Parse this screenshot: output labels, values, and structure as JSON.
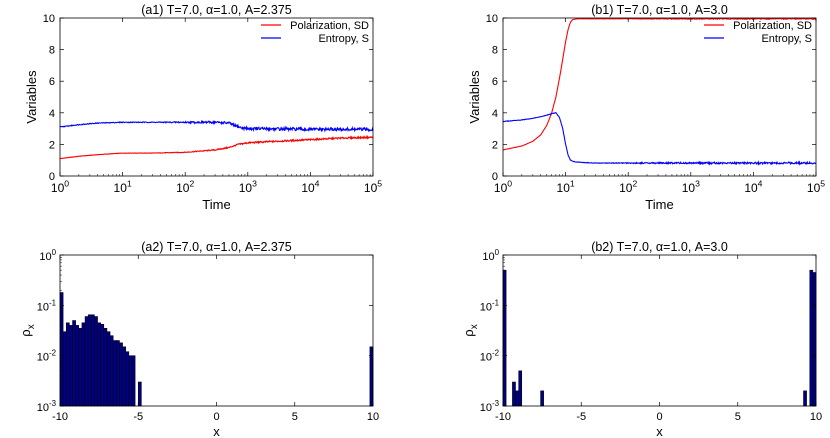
{
  "colors": {
    "polarization": "#ff0000",
    "entropy": "#0000ff",
    "bar_fill": "#000080",
    "bar_edge": "#000000"
  },
  "chart_data": [
    {
      "id": "a1",
      "type": "line",
      "title": "(a1) T=7.0,    α=1.0, A=2.375",
      "xlabel": "Time",
      "ylabel": "Variables",
      "xscale": "log",
      "xlim": [
        1,
        100000
      ],
      "ylim": [
        0,
        10
      ],
      "xticks": [
        1,
        10,
        100,
        1000,
        10000,
        100000
      ],
      "xtick_labels": [
        {
          "base": "10",
          "exp": "0"
        },
        {
          "base": "10",
          "exp": "1"
        },
        {
          "base": "10",
          "exp": "2"
        },
        {
          "base": "10",
          "exp": "3"
        },
        {
          "base": "10",
          "exp": "4"
        },
        {
          "base": "10",
          "exp": "5"
        }
      ],
      "yticks": [
        0,
        2,
        4,
        6,
        8,
        10
      ],
      "ytick_labels": [
        "0",
        "2",
        "4",
        "6",
        "8",
        "10"
      ],
      "legend": {
        "position": "top-right"
      },
      "series": [
        {
          "name": "Polarization, SD",
          "color": "#ff0000",
          "noise": 0.05,
          "x": [
            1,
            2,
            4,
            10,
            30,
            100,
            300,
            500,
            700,
            1000,
            3000,
            10000,
            30000,
            100000
          ],
          "y": [
            1.1,
            1.25,
            1.35,
            1.45,
            1.45,
            1.5,
            1.65,
            1.8,
            2.0,
            2.1,
            2.2,
            2.3,
            2.4,
            2.45
          ]
        },
        {
          "name": "Entropy, S",
          "color": "#0000ff",
          "noise": 0.1,
          "x": [
            1,
            2,
            4,
            10,
            100,
            300,
            500,
            600,
            800,
            1000,
            10000,
            100000
          ],
          "y": [
            3.1,
            3.25,
            3.35,
            3.4,
            3.4,
            3.4,
            3.35,
            3.2,
            3.05,
            3.0,
            2.95,
            2.95
          ]
        }
      ]
    },
    {
      "id": "b1",
      "type": "line",
      "title": "(b1) T=7.0,    α=1.0, A=3.0",
      "xlabel": "Time",
      "ylabel": "Variables",
      "xscale": "log",
      "xlim": [
        1,
        100000
      ],
      "ylim": [
        0,
        10
      ],
      "xticks": [
        1,
        10,
        100,
        1000,
        10000,
        100000
      ],
      "xtick_labels": [
        {
          "base": "10",
          "exp": "0"
        },
        {
          "base": "10",
          "exp": "1"
        },
        {
          "base": "10",
          "exp": "2"
        },
        {
          "base": "10",
          "exp": "3"
        },
        {
          "base": "10",
          "exp": "4"
        },
        {
          "base": "10",
          "exp": "5"
        }
      ],
      "yticks": [
        0,
        2,
        4,
        6,
        8,
        10
      ],
      "ytick_labels": [
        "0",
        "2",
        "4",
        "6",
        "8",
        "10"
      ],
      "legend": {
        "position": "top-right"
      },
      "series": [
        {
          "name": "Polarization, SD",
          "color": "#ff0000",
          "noise": 0.03,
          "x": [
            1,
            2,
            3,
            4,
            5,
            6,
            7,
            8,
            9,
            10,
            11,
            12,
            13,
            15,
            20,
            100000
          ],
          "y": [
            1.65,
            1.9,
            2.2,
            2.6,
            3.2,
            4.0,
            5.0,
            6.2,
            7.4,
            8.5,
            9.3,
            9.75,
            9.9,
            9.95,
            9.95,
            9.95
          ]
        },
        {
          "name": "Entropy, S",
          "color": "#0000ff",
          "noise": 0.06,
          "x": [
            1,
            2,
            3,
            4,
            5,
            6,
            7,
            8,
            9,
            10,
            11,
            12,
            14,
            20,
            30,
            100000
          ],
          "y": [
            3.45,
            3.55,
            3.65,
            3.75,
            3.85,
            3.95,
            4.0,
            3.7,
            3.0,
            2.0,
            1.3,
            1.0,
            0.9,
            0.85,
            0.82,
            0.82
          ]
        }
      ]
    },
    {
      "id": "a2",
      "type": "bar",
      "title": "(a2) T=7.0,    α=1.0, A=2.375",
      "xlabel": "x",
      "ylabel": {
        "base": "ρ",
        "sub": "x"
      },
      "yscale": "log",
      "xlim": [
        -10,
        10
      ],
      "ylim": [
        0.001,
        1
      ],
      "xticks": [
        -10,
        -5,
        0,
        5,
        10
      ],
      "xtick_labels": [
        "-10",
        "-5",
        "0",
        "5",
        "10"
      ],
      "yticks": [
        0.001,
        0.01,
        0.1,
        1
      ],
      "ytick_labels": [
        {
          "base": "10",
          "exp": "-3"
        },
        {
          "base": "10",
          "exp": "-2"
        },
        {
          "base": "10",
          "exp": "-1"
        },
        {
          "base": "10",
          "exp": "0"
        }
      ],
      "bar_width": 0.2,
      "x": [
        -9.9,
        -9.7,
        -9.5,
        -9.3,
        -9.1,
        -8.9,
        -8.7,
        -8.5,
        -8.3,
        -8.1,
        -7.9,
        -7.7,
        -7.5,
        -7.3,
        -7.1,
        -6.9,
        -6.7,
        -6.5,
        -6.3,
        -6.1,
        -5.9,
        -5.7,
        -5.5,
        -5.3,
        -4.9,
        9.9
      ],
      "values": [
        0.18,
        0.03,
        0.045,
        0.04,
        0.05,
        0.04,
        0.035,
        0.045,
        0.06,
        0.065,
        0.065,
        0.06,
        0.045,
        0.042,
        0.035,
        0.03,
        0.025,
        0.02,
        0.02,
        0.018,
        0.015,
        0.012,
        0.01,
        0.01,
        0.003,
        0.015
      ]
    },
    {
      "id": "b2",
      "type": "bar",
      "title": "(b2) T=7.0,    α=1.0, A=3.0",
      "xlabel": "x",
      "ylabel": {
        "base": "ρ",
        "sub": "x"
      },
      "yscale": "log",
      "xlim": [
        -10,
        10
      ],
      "ylim": [
        0.001,
        1
      ],
      "xticks": [
        -10,
        -5,
        0,
        5,
        10
      ],
      "xtick_labels": [
        "-10",
        "-5",
        "0",
        "5",
        "10"
      ],
      "yticks": [
        0.001,
        0.01,
        0.1,
        1
      ],
      "ytick_labels": [
        {
          "base": "10",
          "exp": "-3"
        },
        {
          "base": "10",
          "exp": "-2"
        },
        {
          "base": "10",
          "exp": "-1"
        },
        {
          "base": "10",
          "exp": "0"
        }
      ],
      "bar_width": 0.2,
      "x": [
        -9.9,
        -9.3,
        -9.1,
        -8.9,
        -7.5,
        9.3,
        9.7,
        9.9
      ],
      "values": [
        0.5,
        0.003,
        0.002,
        0.005,
        0.002,
        0.002,
        0.5,
        0.45
      ]
    }
  ]
}
